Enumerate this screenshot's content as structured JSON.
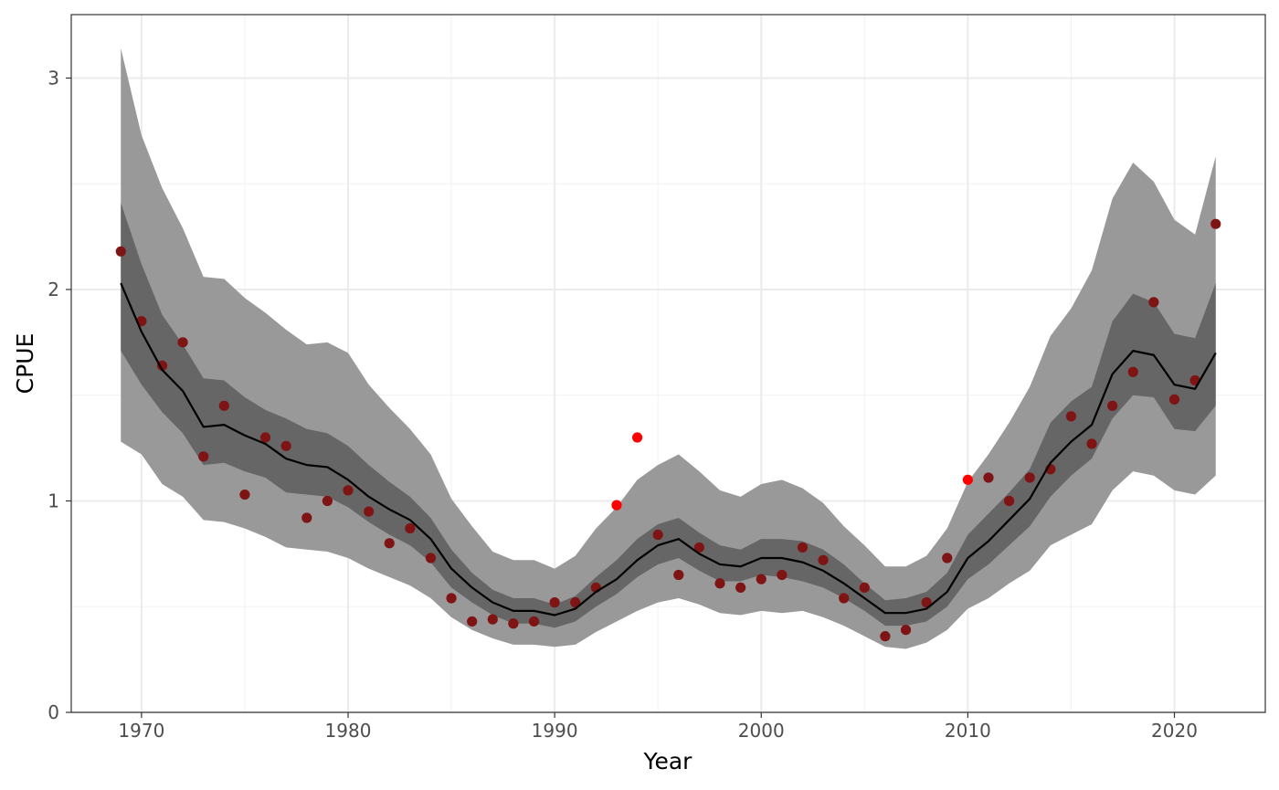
{
  "chart_data": {
    "type": "line",
    "title": "",
    "xlabel": "Year",
    "ylabel": "CPUE",
    "xlim": [
      1966.35,
      1924.65
    ],
    "ylim": [
      0,
      3.3
    ],
    "x_ticks": [
      1970,
      1980,
      1990,
      2000,
      2010,
      2020
    ],
    "x_tick_labels": [
      "1970",
      "1980",
      "1990",
      "2000",
      "2010",
      "2020"
    ],
    "y_ticks": [
      0,
      1,
      2,
      3
    ],
    "y_tick_labels": [
      "0",
      "1",
      "2",
      "3"
    ],
    "grid": true,
    "legend": "none",
    "years": [
      1969,
      1970,
      1971,
      1972,
      1973,
      1974,
      1975,
      1976,
      1977,
      1978,
      1979,
      1980,
      1981,
      1982,
      1983,
      1984,
      1985,
      1986,
      1987,
      1988,
      1989,
      1990,
      1991,
      1992,
      1993,
      1994,
      1995,
      1996,
      1997,
      1998,
      1999,
      2000,
      2001,
      2002,
      2003,
      2004,
      2005,
      2006,
      2007,
      2008,
      2009,
      2010,
      2011,
      2012,
      2013,
      2014,
      2015,
      2016,
      2017,
      2018,
      2019,
      2020,
      2021,
      2022
    ],
    "fit": [
      2.03,
      1.8,
      1.62,
      1.52,
      1.35,
      1.36,
      1.31,
      1.27,
      1.2,
      1.17,
      1.16,
      1.1,
      1.02,
      0.96,
      0.91,
      0.82,
      0.68,
      0.59,
      0.52,
      0.48,
      0.48,
      0.46,
      0.49,
      0.57,
      0.63,
      0.72,
      0.79,
      0.82,
      0.75,
      0.7,
      0.69,
      0.73,
      0.73,
      0.71,
      0.67,
      0.61,
      0.54,
      0.47,
      0.47,
      0.49,
      0.57,
      0.73,
      0.81,
      0.91,
      1.01,
      1.18,
      1.28,
      1.36,
      1.6,
      1.71,
      1.69,
      1.55,
      1.53,
      1.7
    ],
    "inner_band_upper": [
      2.41,
      2.12,
      1.88,
      1.74,
      1.58,
      1.57,
      1.49,
      1.43,
      1.39,
      1.34,
      1.32,
      1.26,
      1.17,
      1.09,
      1.02,
      0.92,
      0.77,
      0.66,
      0.58,
      0.54,
      0.54,
      0.51,
      0.55,
      0.64,
      0.72,
      0.82,
      0.89,
      0.92,
      0.85,
      0.79,
      0.77,
      0.82,
      0.82,
      0.81,
      0.77,
      0.7,
      0.61,
      0.53,
      0.54,
      0.57,
      0.66,
      0.84,
      0.94,
      1.04,
      1.15,
      1.37,
      1.47,
      1.54,
      1.85,
      1.98,
      1.94,
      1.79,
      1.77,
      2.03
    ],
    "inner_band_lower": [
      1.71,
      1.55,
      1.42,
      1.32,
      1.17,
      1.18,
      1.14,
      1.11,
      1.04,
      1.03,
      1.02,
      0.97,
      0.9,
      0.84,
      0.79,
      0.71,
      0.59,
      0.52,
      0.46,
      0.42,
      0.42,
      0.4,
      0.43,
      0.5,
      0.56,
      0.64,
      0.7,
      0.73,
      0.67,
      0.62,
      0.62,
      0.65,
      0.64,
      0.62,
      0.59,
      0.54,
      0.48,
      0.41,
      0.41,
      0.43,
      0.5,
      0.63,
      0.7,
      0.79,
      0.88,
      1.02,
      1.12,
      1.2,
      1.39,
      1.5,
      1.49,
      1.34,
      1.33,
      1.45
    ],
    "outer_band_upper": [
      3.14,
      2.73,
      2.48,
      2.29,
      2.06,
      2.05,
      1.96,
      1.89,
      1.81,
      1.74,
      1.75,
      1.7,
      1.55,
      1.44,
      1.34,
      1.22,
      1.01,
      0.88,
      0.76,
      0.72,
      0.72,
      0.68,
      0.74,
      0.87,
      0.97,
      1.1,
      1.17,
      1.22,
      1.14,
      1.05,
      1.02,
      1.08,
      1.1,
      1.06,
      0.99,
      0.88,
      0.79,
      0.69,
      0.69,
      0.74,
      0.87,
      1.09,
      1.22,
      1.37,
      1.54,
      1.78,
      1.91,
      2.09,
      2.43,
      2.6,
      2.51,
      2.33,
      2.26,
      2.63
    ],
    "outer_band_lower": [
      1.28,
      1.22,
      1.08,
      1.02,
      0.91,
      0.9,
      0.87,
      0.83,
      0.78,
      0.77,
      0.76,
      0.73,
      0.68,
      0.64,
      0.6,
      0.54,
      0.45,
      0.39,
      0.35,
      0.32,
      0.32,
      0.31,
      0.32,
      0.38,
      0.43,
      0.48,
      0.52,
      0.54,
      0.51,
      0.47,
      0.46,
      0.48,
      0.47,
      0.48,
      0.45,
      0.41,
      0.36,
      0.31,
      0.3,
      0.33,
      0.39,
      0.49,
      0.54,
      0.61,
      0.67,
      0.79,
      0.84,
      0.89,
      1.05,
      1.14,
      1.12,
      1.05,
      1.03,
      1.12
    ],
    "observed": [
      2.18,
      1.85,
      1.64,
      1.75,
      1.21,
      1.45,
      1.03,
      1.3,
      1.26,
      0.92,
      1.0,
      1.05,
      0.95,
      0.8,
      0.87,
      0.73,
      0.54,
      0.43,
      0.44,
      0.42,
      0.43,
      0.52,
      0.52,
      0.59,
      0.98,
      1.3,
      0.84,
      0.65,
      0.78,
      0.61,
      0.59,
      0.63,
      0.65,
      0.78,
      0.72,
      0.54,
      0.59,
      0.36,
      0.39,
      0.52,
      0.73,
      1.1,
      1.11,
      1.0,
      1.11,
      1.15,
      1.4,
      1.27,
      1.45,
      1.61,
      1.94,
      1.48,
      1.57,
      2.31
    ],
    "colors": {
      "outer_band": "#999999",
      "inner_band": "#666666",
      "fit_line": "#000000",
      "point_outside": "#ff0000",
      "point_inside": "#7f1414",
      "grid_major": "#ebebeb",
      "grid_minor": "#f2f2f2",
      "panel_border": "#333333"
    }
  }
}
